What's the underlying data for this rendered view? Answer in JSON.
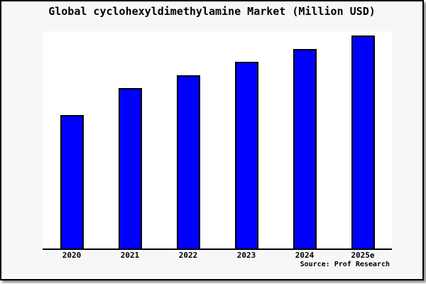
{
  "window": {
    "background_color": "#f7f7f7",
    "plot_background_color": "#ffffff",
    "border_color": "#000000",
    "shadow_color": "#8a8a8a"
  },
  "chart_data": {
    "type": "bar",
    "title": "Global cyclohexyldimethylamine Market (Million USD)",
    "categories": [
      "2020",
      "2021",
      "2022",
      "2023",
      "2024",
      "2025e"
    ],
    "values": [
      62.7,
      75.3,
      81.3,
      87.7,
      93.7,
      100
    ],
    "values_are_relative_estimates": true,
    "ylabel": "",
    "xlabel": "",
    "ylim": [
      0,
      102
    ],
    "y_axis_visible": false,
    "grid": false,
    "legend": "none",
    "bar_color": "#0000ff",
    "bar_border_color": "#000000",
    "source_label": "Source: Prof Research"
  }
}
